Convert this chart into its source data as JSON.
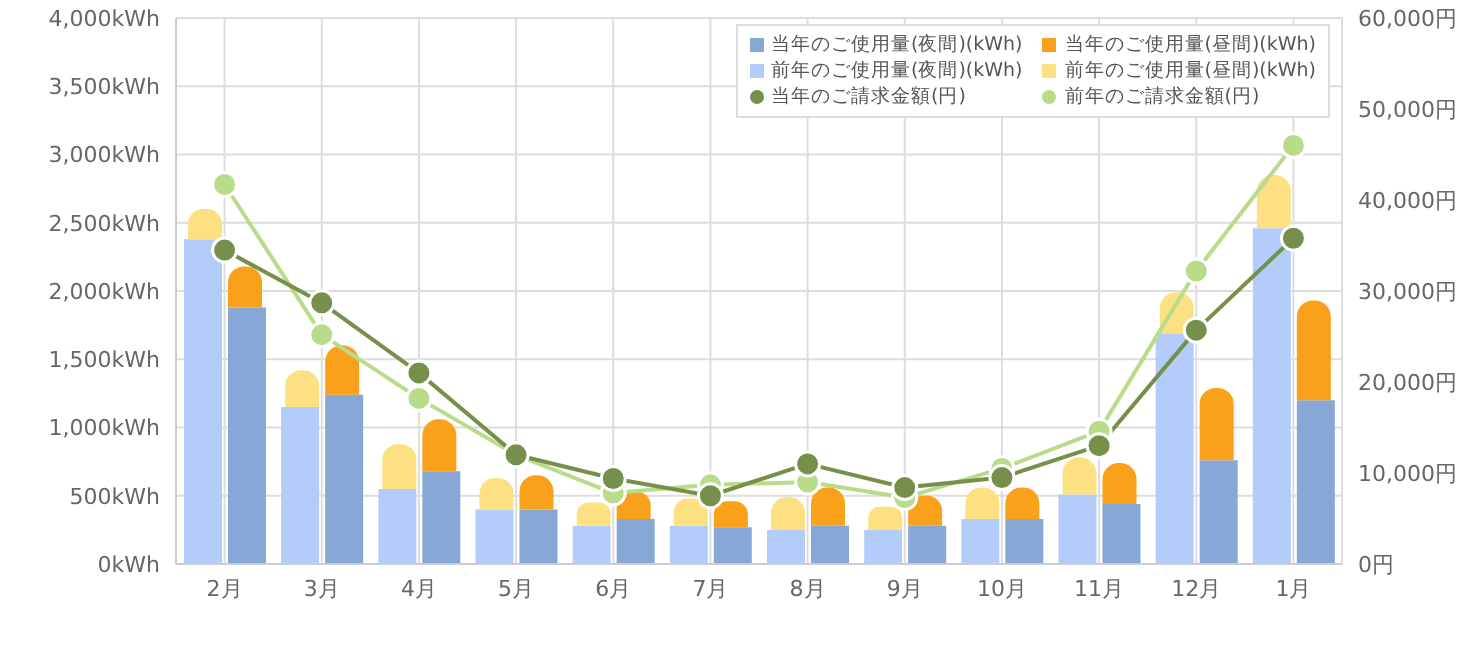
{
  "chart_data": {
    "type": "bar",
    "categories": [
      "2月",
      "3月",
      "4月",
      "5月",
      "6月",
      "7月",
      "8月",
      "9月",
      "10月",
      "11月",
      "12月",
      "1月"
    ],
    "series": [
      {
        "name": "当年のご使用量(夜間)(kWh)",
        "color": "#87a7d6",
        "values": [
          1880,
          1240,
          680,
          400,
          330,
          270,
          280,
          280,
          330,
          440,
          760,
          1200
        ]
      },
      {
        "name": "当年のご使用量(昼間)(kWh)",
        "color": "#f9a11b",
        "values": [
          300,
          360,
          380,
          250,
          200,
          190,
          280,
          220,
          230,
          300,
          530,
          730
        ],
        "base": [
          1880,
          1240,
          680,
          400,
          330,
          270,
          280,
          280,
          330,
          440,
          760,
          1200
        ]
      },
      {
        "name": "前年のご使用量(夜間)(kWh)",
        "color": "#b3ccfa",
        "values": [
          2380,
          1150,
          550,
          400,
          280,
          280,
          250,
          250,
          330,
          510,
          1690,
          2460
        ]
      },
      {
        "name": "前年のご使用量(昼間)(kWh)",
        "color": "#fde082",
        "values": [
          220,
          270,
          330,
          230,
          170,
          200,
          240,
          170,
          230,
          270,
          300,
          390
        ],
        "base": [
          2380,
          1150,
          550,
          400,
          280,
          280,
          250,
          250,
          330,
          510,
          1690,
          2460
        ]
      },
      {
        "name": "当年のご請求金額(円)",
        "type": "line",
        "axis": "y2",
        "color": "#76904b",
        "values": [
          34500,
          28700,
          21000,
          12000,
          9400,
          7500,
          11000,
          8400,
          9500,
          13000,
          25700,
          35800
        ]
      },
      {
        "name": "前年のご請求金額(円)",
        "type": "line",
        "axis": "y2",
        "color": "#b8dc8a",
        "values": [
          41700,
          25200,
          18200,
          12000,
          7800,
          8700,
          9000,
          7300,
          10500,
          14600,
          32200,
          46000
        ]
      }
    ],
    "ylim": [
      0,
      4000
    ],
    "yticks": [
      {
        "value": 0,
        "label": "0kWh"
      },
      {
        "value": 500,
        "label": "500kWh"
      },
      {
        "value": 1000,
        "label": "1,000kWh"
      },
      {
        "value": 1500,
        "label": "1,500kWh"
      },
      {
        "value": 2000,
        "label": "2,000kWh"
      },
      {
        "value": 2500,
        "label": "2,500kWh"
      },
      {
        "value": 3000,
        "label": "3,000kWh"
      },
      {
        "value": 3500,
        "label": "3,500kWh"
      },
      {
        "value": 4000,
        "label": "4,000kWh"
      }
    ],
    "y2lim": [
      0,
      60000
    ],
    "y2ticks": [
      {
        "value": 0,
        "label": "0円"
      },
      {
        "value": 10000,
        "label": "10,000円"
      },
      {
        "value": 20000,
        "label": "20,000円"
      },
      {
        "value": 30000,
        "label": "30,000円"
      },
      {
        "value": 40000,
        "label": "40,000円"
      },
      {
        "value": 50000,
        "label": "50,000円"
      },
      {
        "value": 60000,
        "label": "60,000円"
      }
    ],
    "grid": true,
    "legend": "top right",
    "marker": "circle"
  }
}
